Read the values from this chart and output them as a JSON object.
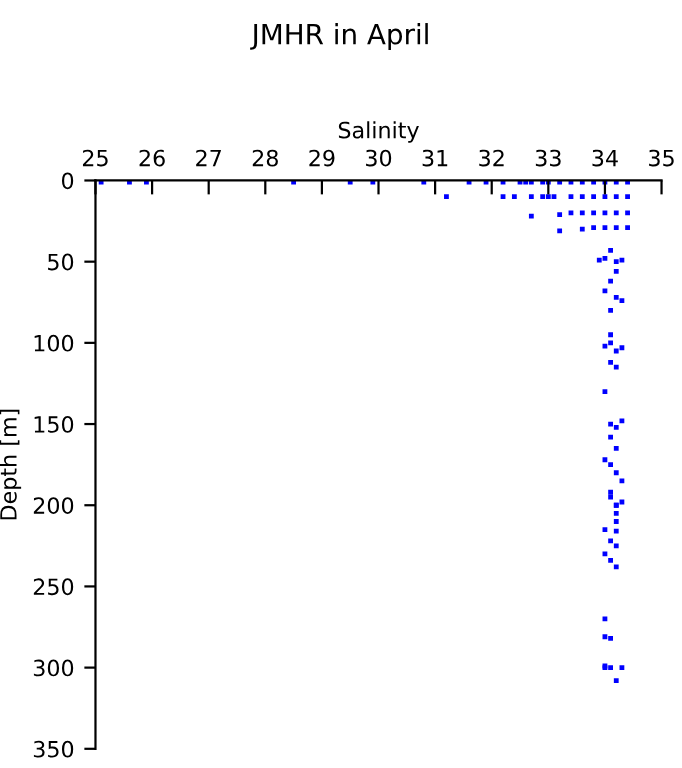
{
  "chart_data": {
    "type": "scatter",
    "title": "JMHR in April",
    "xlabel": "Salinity",
    "ylabel": "Depth [m]",
    "xlim": [
      25,
      35
    ],
    "xticks": [
      25,
      26,
      27,
      28,
      29,
      30,
      31,
      32,
      33,
      34,
      35
    ],
    "ylim": [
      350,
      0
    ],
    "yticks": [
      0,
      50,
      100,
      150,
      200,
      250,
      300,
      350
    ],
    "marker": "square",
    "grid": false,
    "tick_labels": "xy",
    "series": [
      {
        "color": "#0000ff",
        "x": [
          25.1,
          25.6,
          25.9,
          28.5,
          29.5,
          29.9,
          30.8,
          31.6,
          31.9,
          32.2,
          32.5,
          32.6,
          32.7,
          32.9,
          33.0,
          33.2,
          33.4,
          33.6,
          33.8,
          34.0,
          34.2,
          34.4,
          31.2,
          32.2,
          32.4,
          32.7,
          32.9,
          33.0,
          33.1,
          33.4,
          33.6,
          33.8,
          34.0,
          34.2,
          34.4,
          32.7,
          33.2,
          33.4,
          33.6,
          33.8,
          34.0,
          34.2,
          34.4,
          33.2,
          33.6,
          33.8,
          34.0,
          34.2,
          34.4,
          34.1,
          33.9,
          34.0,
          34.2,
          34.3,
          34.2,
          34.0,
          34.1,
          34.2,
          34.3,
          34.1,
          34.1,
          34.0,
          34.1,
          34.2,
          34.3,
          34.1,
          34.2,
          34.0,
          34.1,
          34.2,
          34.3,
          34.1,
          34.2,
          34.0,
          34.1,
          34.2,
          34.3,
          34.1,
          34.2,
          34.1,
          34.2,
          34.2,
          34.0,
          34.1,
          34.2,
          34.3,
          34.0,
          34.1,
          34.2,
          34.0,
          34.2,
          34.2,
          34.0,
          34.1,
          34.0,
          34.0,
          34.1,
          34.3,
          34.2
        ],
        "values": [
          1,
          1,
          1,
          1,
          1,
          1,
          1,
          1,
          1,
          1,
          1,
          1,
          1,
          1,
          1,
          1,
          1,
          1,
          1,
          1,
          1,
          1,
          10,
          10,
          10,
          10,
          10,
          10,
          10,
          10,
          10,
          10,
          10,
          10,
          10,
          22,
          21,
          20,
          20,
          20,
          20,
          20,
          20,
          31,
          30,
          29,
          29,
          29,
          29,
          43,
          49,
          48,
          50,
          49,
          56,
          68,
          62,
          72,
          74,
          80,
          95,
          102,
          100,
          105,
          103,
          112,
          115,
          130,
          150,
          152,
          148,
          158,
          165,
          172,
          175,
          180,
          185,
          192,
          200,
          195,
          205,
          210,
          215,
          222,
          200,
          198,
          230,
          234,
          238,
          270,
          225,
          216,
          281,
          282,
          300,
          299,
          300,
          300,
          308
        ]
      }
    ]
  }
}
